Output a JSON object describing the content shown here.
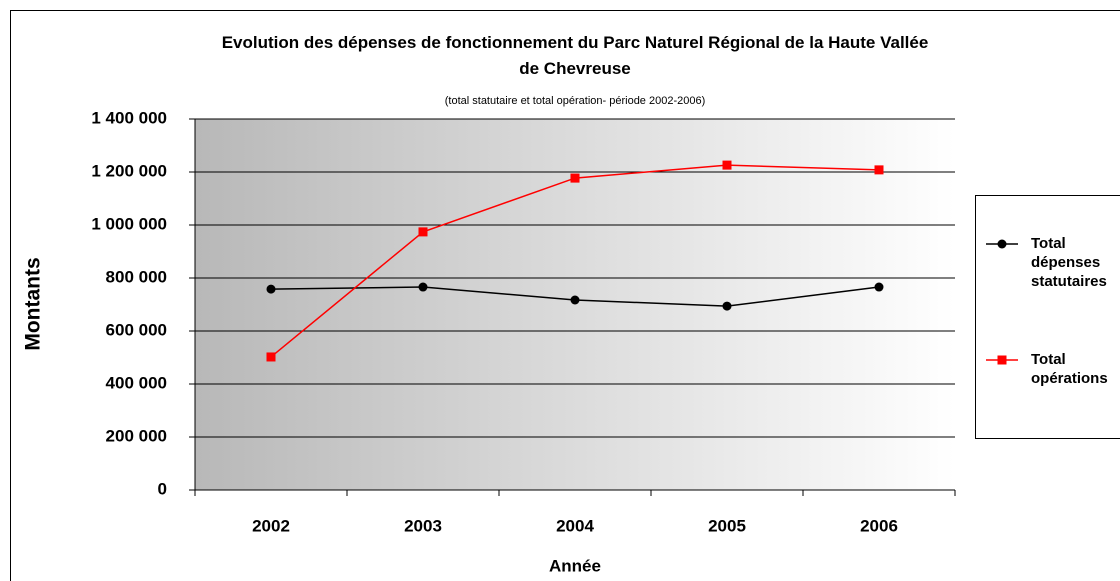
{
  "chart_data": {
    "type": "line",
    "title": "Evolution des dépenses de fonctionnement du Parc Naturel Régional de la Haute Vallée de Chevreuse",
    "subtitle": "(total statutaire et total opération- période 2002-2006)",
    "x_label": "Année",
    "y_label": "Montants",
    "categories": [
      "2002",
      "2003",
      "2004",
      "2005",
      "2006"
    ],
    "series": [
      {
        "name": "Total dépenses statutaires",
        "color": "#000000",
        "marker": "circle",
        "values": [
          758000,
          766000,
          717000,
          694000,
          766000
        ]
      },
      {
        "name": "Total opérations",
        "color": "#ff0000",
        "marker": "square",
        "values": [
          502000,
          974000,
          1177000,
          1226000,
          1208000
        ]
      }
    ],
    "ylim": [
      0,
      1400000
    ],
    "yticks": [
      0,
      {
        "value": 200000,
        "label": "200 000"
      },
      {
        "value": 400000,
        "label": "400 000"
      },
      {
        "value": 600000,
        "label": "600 000"
      },
      {
        "value": 800000,
        "label": "800 000"
      },
      {
        "value": 1000000,
        "label": "1 000 000"
      },
      {
        "value": 1200000,
        "label": "1 200 000"
      },
      {
        "value": 1400000,
        "label": "1 400 000"
      }
    ],
    "grid": true,
    "legend": "right"
  }
}
